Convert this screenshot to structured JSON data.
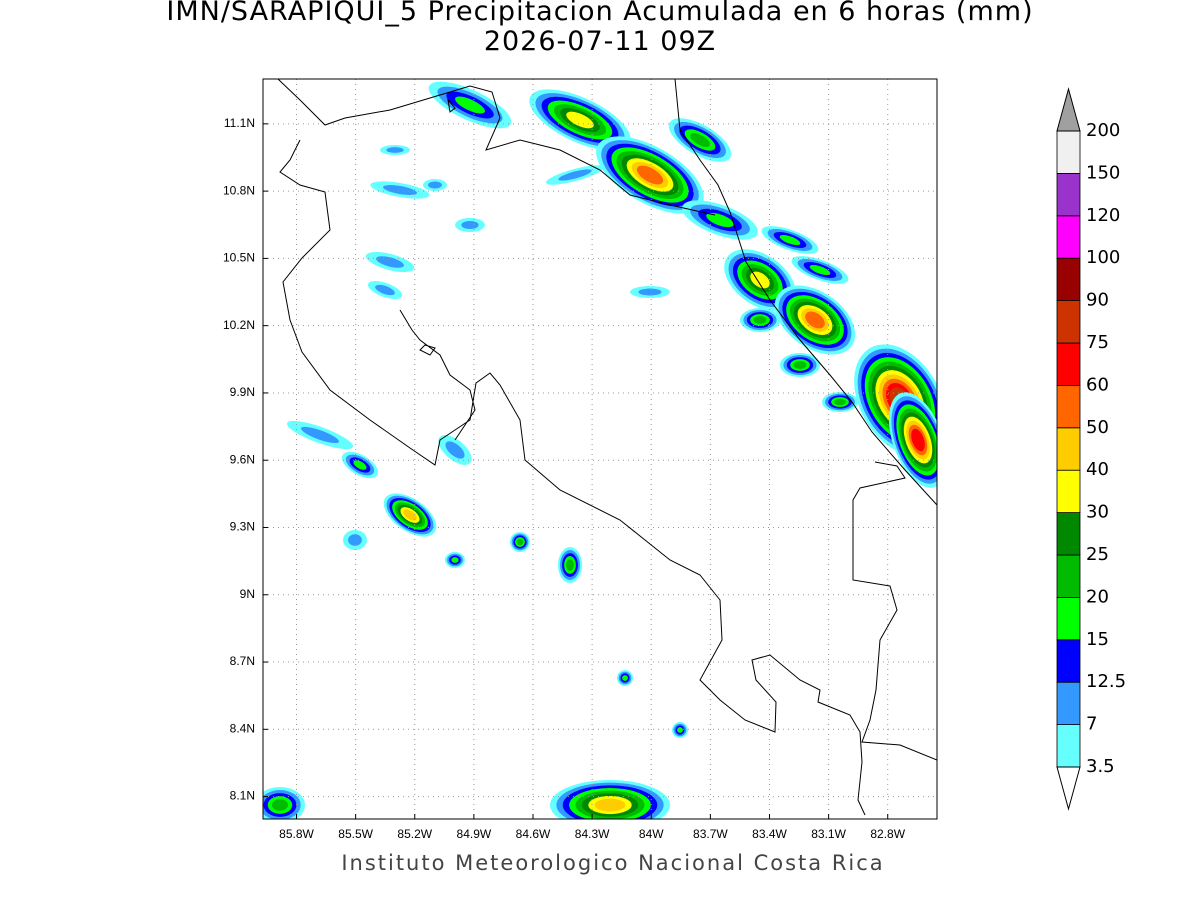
{
  "map": {
    "title": "IMN/SARAPIQUI_5 Precipitacion Acumulada en 6 horas (mm)",
    "subtitle": "2026-07-11 09Z",
    "footer": "Instituto Meteorologico Nacional Costa Rica",
    "lonlim": [
      -85.97,
      -82.55
    ],
    "latlim": [
      8.0,
      11.3
    ],
    "xticks": [
      {
        "value": -85.8,
        "label": "85.8W"
      },
      {
        "value": -85.5,
        "label": "85.5W"
      },
      {
        "value": -85.2,
        "label": "85.2W"
      },
      {
        "value": -84.9,
        "label": "84.9W"
      },
      {
        "value": -84.6,
        "label": "84.6W"
      },
      {
        "value": -84.3,
        "label": "84.3W"
      },
      {
        "value": -84.0,
        "label": "84W"
      },
      {
        "value": -83.7,
        "label": "83.7W"
      },
      {
        "value": -83.4,
        "label": "83.4W"
      },
      {
        "value": -83.1,
        "label": "83.1W"
      },
      {
        "value": -82.8,
        "label": "82.8W"
      }
    ],
    "yticks": [
      {
        "value": 8.1,
        "label": "8.1N"
      },
      {
        "value": 8.4,
        "label": "8.4N"
      },
      {
        "value": 8.7,
        "label": "8.7N"
      },
      {
        "value": 9.0,
        "label": "9N"
      },
      {
        "value": 9.3,
        "label": "9.3N"
      },
      {
        "value": 9.6,
        "label": "9.6N"
      },
      {
        "value": 9.9,
        "label": "9.9N"
      },
      {
        "value": 10.2,
        "label": "10.2N"
      },
      {
        "value": 10.5,
        "label": "10.5N"
      },
      {
        "value": 10.8,
        "label": "10.8N"
      },
      {
        "value": 11.1,
        "label": "11.1N"
      }
    ],
    "grid": true,
    "colorbar": {
      "levels": [
        3.5,
        7,
        12.5,
        15,
        20,
        25,
        30,
        40,
        50,
        60,
        75,
        90,
        100,
        120,
        150,
        200
      ],
      "colors": [
        "#ffffff",
        "#66ffff",
        "#3399ff",
        "#0000ff",
        "#00ff00",
        "#00bb00",
        "#008800",
        "#ffff00",
        "#ffcc00",
        "#ff6600",
        "#ff0000",
        "#cc3300",
        "#990000",
        "#ff00ff",
        "#9933cc",
        "#f0f0f0",
        "#a0a0a0"
      ]
    }
  }
}
